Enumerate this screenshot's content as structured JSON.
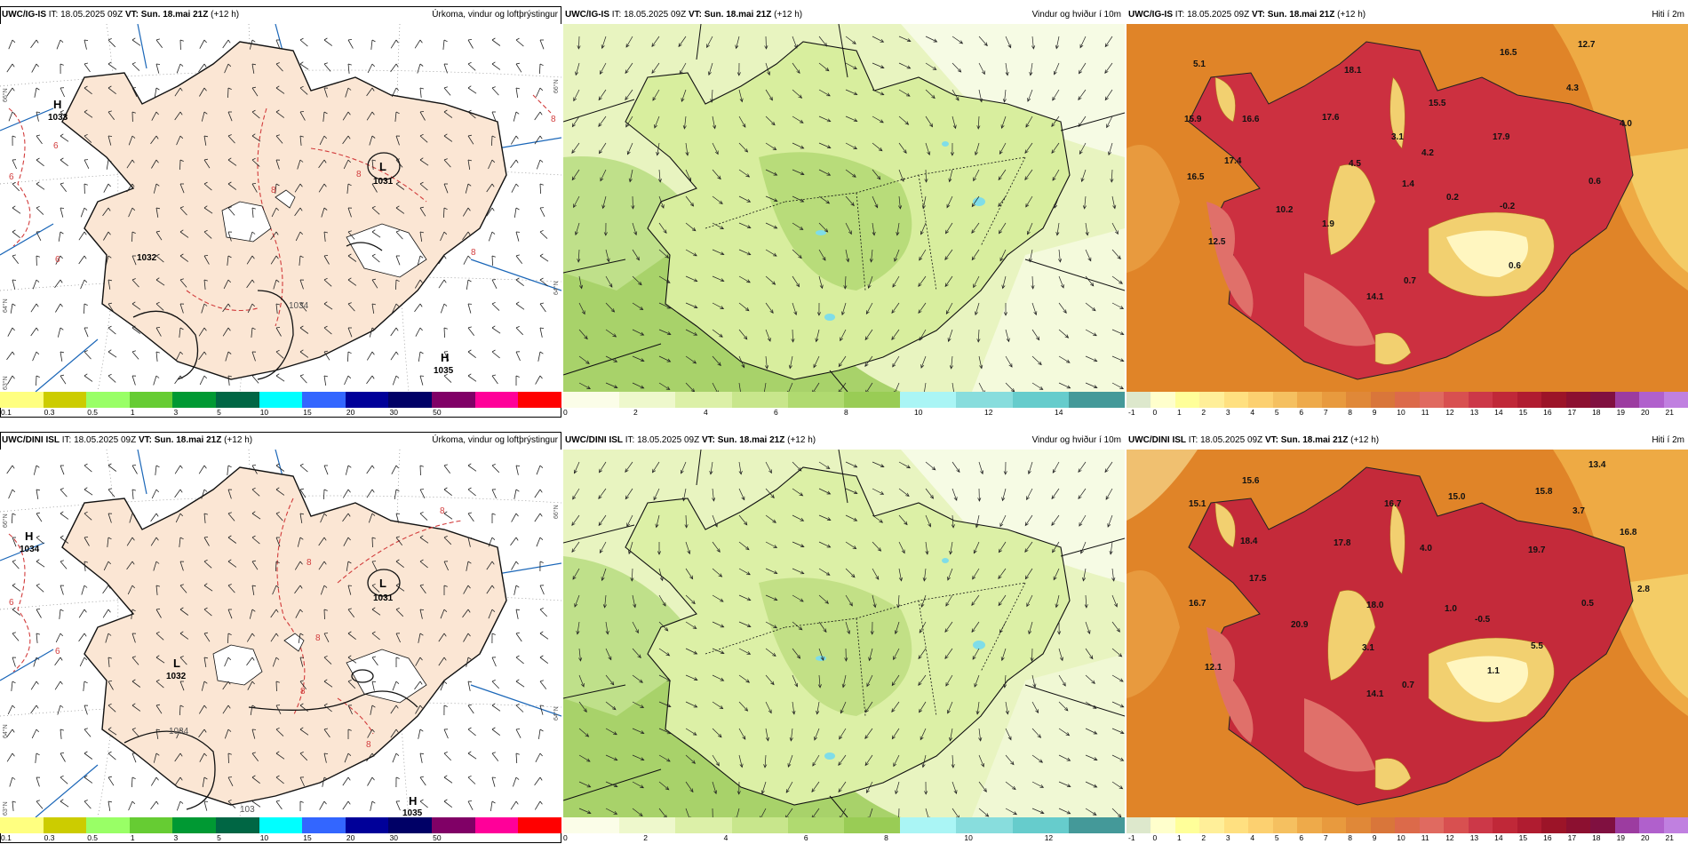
{
  "rows": [
    {
      "model": "UWC/IG-IS",
      "it_label": "IT:",
      "it_value": "18.05.2025 09Z",
      "vt_label": "VT:",
      "vt_value": "Sun. 18.mai 21Z",
      "lead": "(+12 h)",
      "pressure": {
        "highs": [
          {
            "label": "H",
            "value": "1033"
          },
          {
            "label": "H",
            "value": "1035"
          }
        ],
        "lows": [
          {
            "label": "L",
            "value": "1031"
          },
          {
            "label": "",
            "value": "1032"
          }
        ],
        "isobars": [
          "1034"
        ],
        "precip_contour": [
          "6",
          "6",
          "8",
          "8",
          "8",
          "8",
          "6"
        ],
        "lat_labels": [
          "66°N",
          "66°N",
          "64°N",
          "64°N",
          "63°N"
        ]
      },
      "temps": [
        "5.1",
        "18.1",
        "16.5",
        "12.7",
        "15.9",
        "16.6",
        "17.6",
        "15.5",
        "4.3",
        "17.9",
        "4.0",
        "3.1",
        "4.2",
        "17.4",
        "4.5",
        "16.5",
        "1.4",
        "0.6",
        "0.2",
        "-0.2",
        "10.2",
        "1.9",
        "12.5",
        "0.7",
        "0.6",
        "14.1"
      ]
    },
    {
      "model": "UWC/DINI ISL",
      "it_label": "IT:",
      "it_value": "18.05.2025 09Z",
      "vt_label": "VT:",
      "vt_value": "Sun. 18.mai 21Z",
      "lead": "(+12 h)",
      "pressure": {
        "highs": [
          {
            "label": "H",
            "value": "1034"
          },
          {
            "label": "H",
            "value": "1035"
          }
        ],
        "lows": [
          {
            "label": "L",
            "value": "1031"
          },
          {
            "label": "L",
            "value": "1032"
          }
        ],
        "isobars": [
          "1034",
          "103"
        ],
        "precip_contour": [
          "6",
          "6",
          "8",
          "8",
          "8",
          "8",
          "8"
        ],
        "lat_labels": [
          "66°N",
          "66°N",
          "64°N",
          "64°N",
          "63°N"
        ]
      },
      "temps": [
        "15.6",
        "13.4",
        "15.1",
        "16.7",
        "15.0",
        "15.8",
        "3.7",
        "18.4",
        "17.8",
        "4.0",
        "19.7",
        "16.8",
        "17.5",
        "2.8",
        "18.0",
        "1.0",
        "0.5",
        "-0.5",
        "16.7",
        "20.9",
        "3.1",
        "5.5",
        "12.1",
        "14.1",
        "0.7",
        "1.1"
      ]
    }
  ],
  "panels": {
    "precip": {
      "title": "Úrkoma, vindur og loftþrýstingur"
    },
    "wind": {
      "title": "Vindur og hviður í 10m"
    },
    "temp": {
      "title": "Hiti í 2m"
    }
  },
  "colorbars": {
    "precip": {
      "colors": [
        "#ffff80",
        "#cccc00",
        "#99ff66",
        "#66cc33",
        "#009933",
        "#006644",
        "#00ffff",
        "#3366ff",
        "#000099",
        "#000066",
        "#800066",
        "#ff0099",
        "#ff0000"
      ],
      "ticks": [
        "0.1",
        "0.3",
        "0.5",
        "1",
        "3",
        "5",
        "10",
        "15",
        "20",
        "30",
        "50"
      ]
    },
    "wind_row1": {
      "colors": [
        "#fbfde8",
        "#eef8cc",
        "#dcf0a8",
        "#c8e68c",
        "#b0da70",
        "#99cc55",
        "#aaf5f5",
        "#88dddd",
        "#66cccc",
        "#449999"
      ],
      "ticks": [
        "0",
        "2",
        "4",
        "6",
        "8",
        "10",
        "12",
        "14"
      ]
    },
    "wind_row2": {
      "colors": [
        "#fbfde8",
        "#eef8cc",
        "#dcf0a8",
        "#c8e68c",
        "#b0da70",
        "#99cc55",
        "#aaf5f5",
        "#88dddd",
        "#66cccc",
        "#449999"
      ],
      "ticks": [
        "0",
        "2",
        "4",
        "6",
        "8",
        "10",
        "12"
      ]
    },
    "temp": {
      "colors": [
        "#dde8cc",
        "#ffffcc",
        "#ffff99",
        "#ffef99",
        "#ffe080",
        "#fcd070",
        "#f5c060",
        "#eeaa4a",
        "#e89a3e",
        "#e08838",
        "#d9763a",
        "#dc6a4a",
        "#e06a60",
        "#d85050",
        "#cc3848",
        "#c02838",
        "#b01c30",
        "#9c1428",
        "#8c1030",
        "#801040",
        "#9c3ca0",
        "#b060cc",
        "#c080e0"
      ],
      "ticks": [
        "-1",
        "0",
        "1",
        "2",
        "3",
        "4",
        "5",
        "6",
        "7",
        "8",
        "9",
        "10",
        "11",
        "12",
        "13",
        "14",
        "15",
        "16",
        "17",
        "18",
        "19",
        "20",
        "21"
      ]
    }
  },
  "colors": {
    "land_precip": "#fbe6d4",
    "coast": "#111111",
    "isobar_blue": "#1a66b8",
    "contour_red": "#d23c3c",
    "wind_base": "#f2f8d8",
    "temp_sea": "#dd8020",
    "temp_land": "#c8303c"
  }
}
